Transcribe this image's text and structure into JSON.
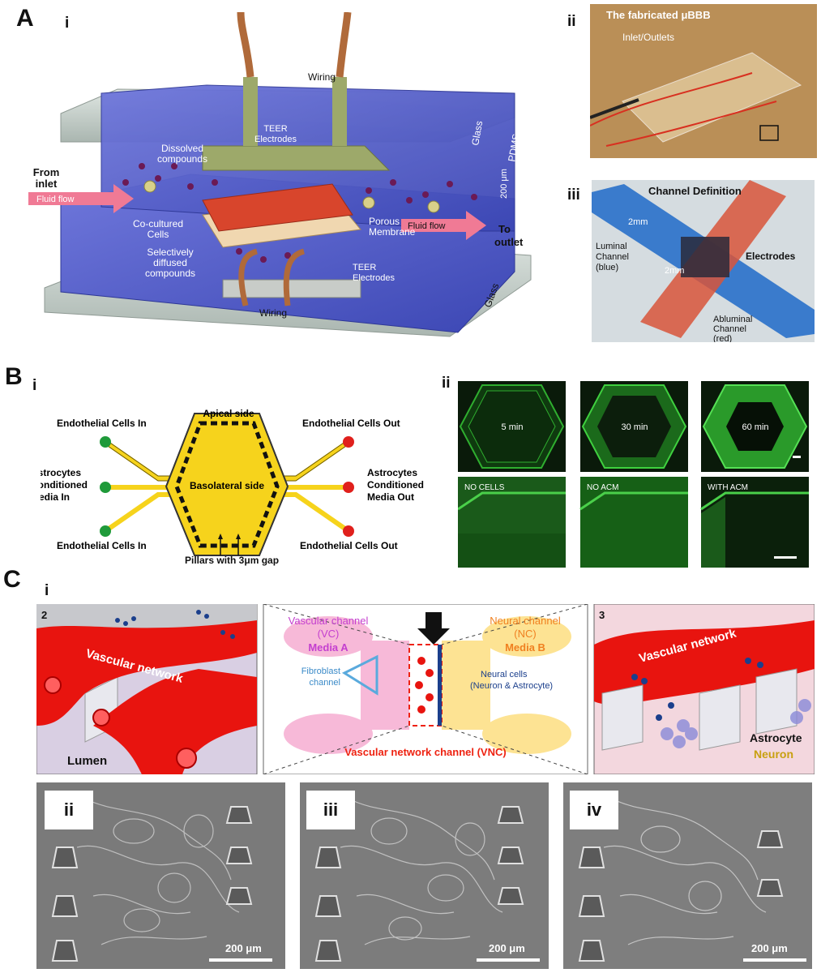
{
  "panel_A": {
    "letter": "A",
    "sub_i": "i",
    "sub_ii": "ii",
    "sub_iii": "iii",
    "diagram": {
      "wiring_top": "Wiring",
      "teer_top_line1": "TEER",
      "teer_top_line2": "Electrodes",
      "glass_top": "Glass",
      "pdms": "PDMS",
      "dissolved_line1": "Dissolved",
      "dissolved_line2": "compounds",
      "from_inlet_line1": "From",
      "from_inlet_line2": "inlet",
      "fluid_flow_left": "Fluid flow",
      "thickness": "200 μm",
      "cocultured_line1": "Co-cultured",
      "cocultured_line2": "Cells",
      "porous_line1": "Porous",
      "porous_line2": "Membrane",
      "fluid_flow_right": "Fluid flow",
      "to_outlet_line1": "To",
      "to_outlet_line2": "outlet",
      "selective_line1": "Selectively",
      "selective_line2": "diffused",
      "selective_line3": "compounds",
      "teer_bottom_line1": "TEER",
      "teer_bottom_line2": "Electrodes",
      "wiring_bottom": "Wiring",
      "glass_bottom": "Glass"
    },
    "photo_ii": {
      "title": "The fabricated μBBB",
      "inlet": "Inlet/Outlets"
    },
    "photo_iii": {
      "title": "Channel Definition",
      "dim_top": "2mm",
      "dim_mid": "2mm",
      "luminal_line1": "Luminal",
      "luminal_line2": "Channel",
      "luminal_line3": "(blue)",
      "electrodes": "Electrodes",
      "abluminal_line1": "Abluminal",
      "abluminal_line2": "Channel",
      "abluminal_line3": "(red)"
    }
  },
  "panel_B": {
    "letter": "B",
    "sub_i": "i",
    "sub_ii": "ii",
    "schematic": {
      "apical": "Apical side",
      "basolateral": "Basolateral side",
      "endo_in_top": "Endothelial Cells In",
      "endo_in_bottom": "Endothelial Cells In",
      "endo_out_top": "Endothelial Cells Out",
      "endo_out_bottom": "Endothelial Cells Out",
      "astro_in_line1": "Astrocytes",
      "astro_in_line2": "Conditioned",
      "astro_in_line3": "Media In",
      "astro_out_line1": "Astrocytes",
      "astro_out_line2": "Conditioned",
      "astro_out_line3": "Media Out",
      "pillars": "Pillars with 3μm gap"
    },
    "fluorescence": {
      "t1": "5 min",
      "t2": "30 min",
      "t3": "60 min",
      "c1": "NO CELLS",
      "c2": "NO ACM",
      "c3": "WITH ACM"
    }
  },
  "panel_C": {
    "letter": "C",
    "sub_i": "i",
    "left_num": "2",
    "left_vascular": "Vascular network",
    "left_lumen": "Lumen",
    "center": {
      "vc_line1": "Vascular channel",
      "vc_line2": "(VC)",
      "vc_line3": "Media A",
      "nc_line1": "Neural channel",
      "nc_line2": "(NC)",
      "nc_line3": "Media B",
      "fib_line1": "Fibroblast",
      "fib_line2": "channel",
      "neural_line1": "Neural cells",
      "neural_line2": "(Neuron & Astrocyte)",
      "vnc": "Vascular network channel (VNC)"
    },
    "right_num": "3",
    "right_vascular": "Vascular network",
    "right_astrocyte": "Astrocyte",
    "right_neuron": "Neuron",
    "micro": [
      {
        "label": "ii",
        "scale": "200 μm"
      },
      {
        "label": "iii",
        "scale": "200 μm"
      },
      {
        "label": "iv",
        "scale": "200 μm"
      }
    ]
  },
  "colors": {
    "pdms_blue": "#4a56c8",
    "glass_grey": "#c9d3cf",
    "electrode_olive": "#9da96a",
    "cells_red": "#d8452c",
    "flow_pink": "#f07a95",
    "channel_yellow": "#f6d31c",
    "inlet_green": "#1f9a3a",
    "outlet_red": "#e0201c",
    "vascular_red": "#e8140f",
    "fluor_green": "#2fae2f"
  }
}
